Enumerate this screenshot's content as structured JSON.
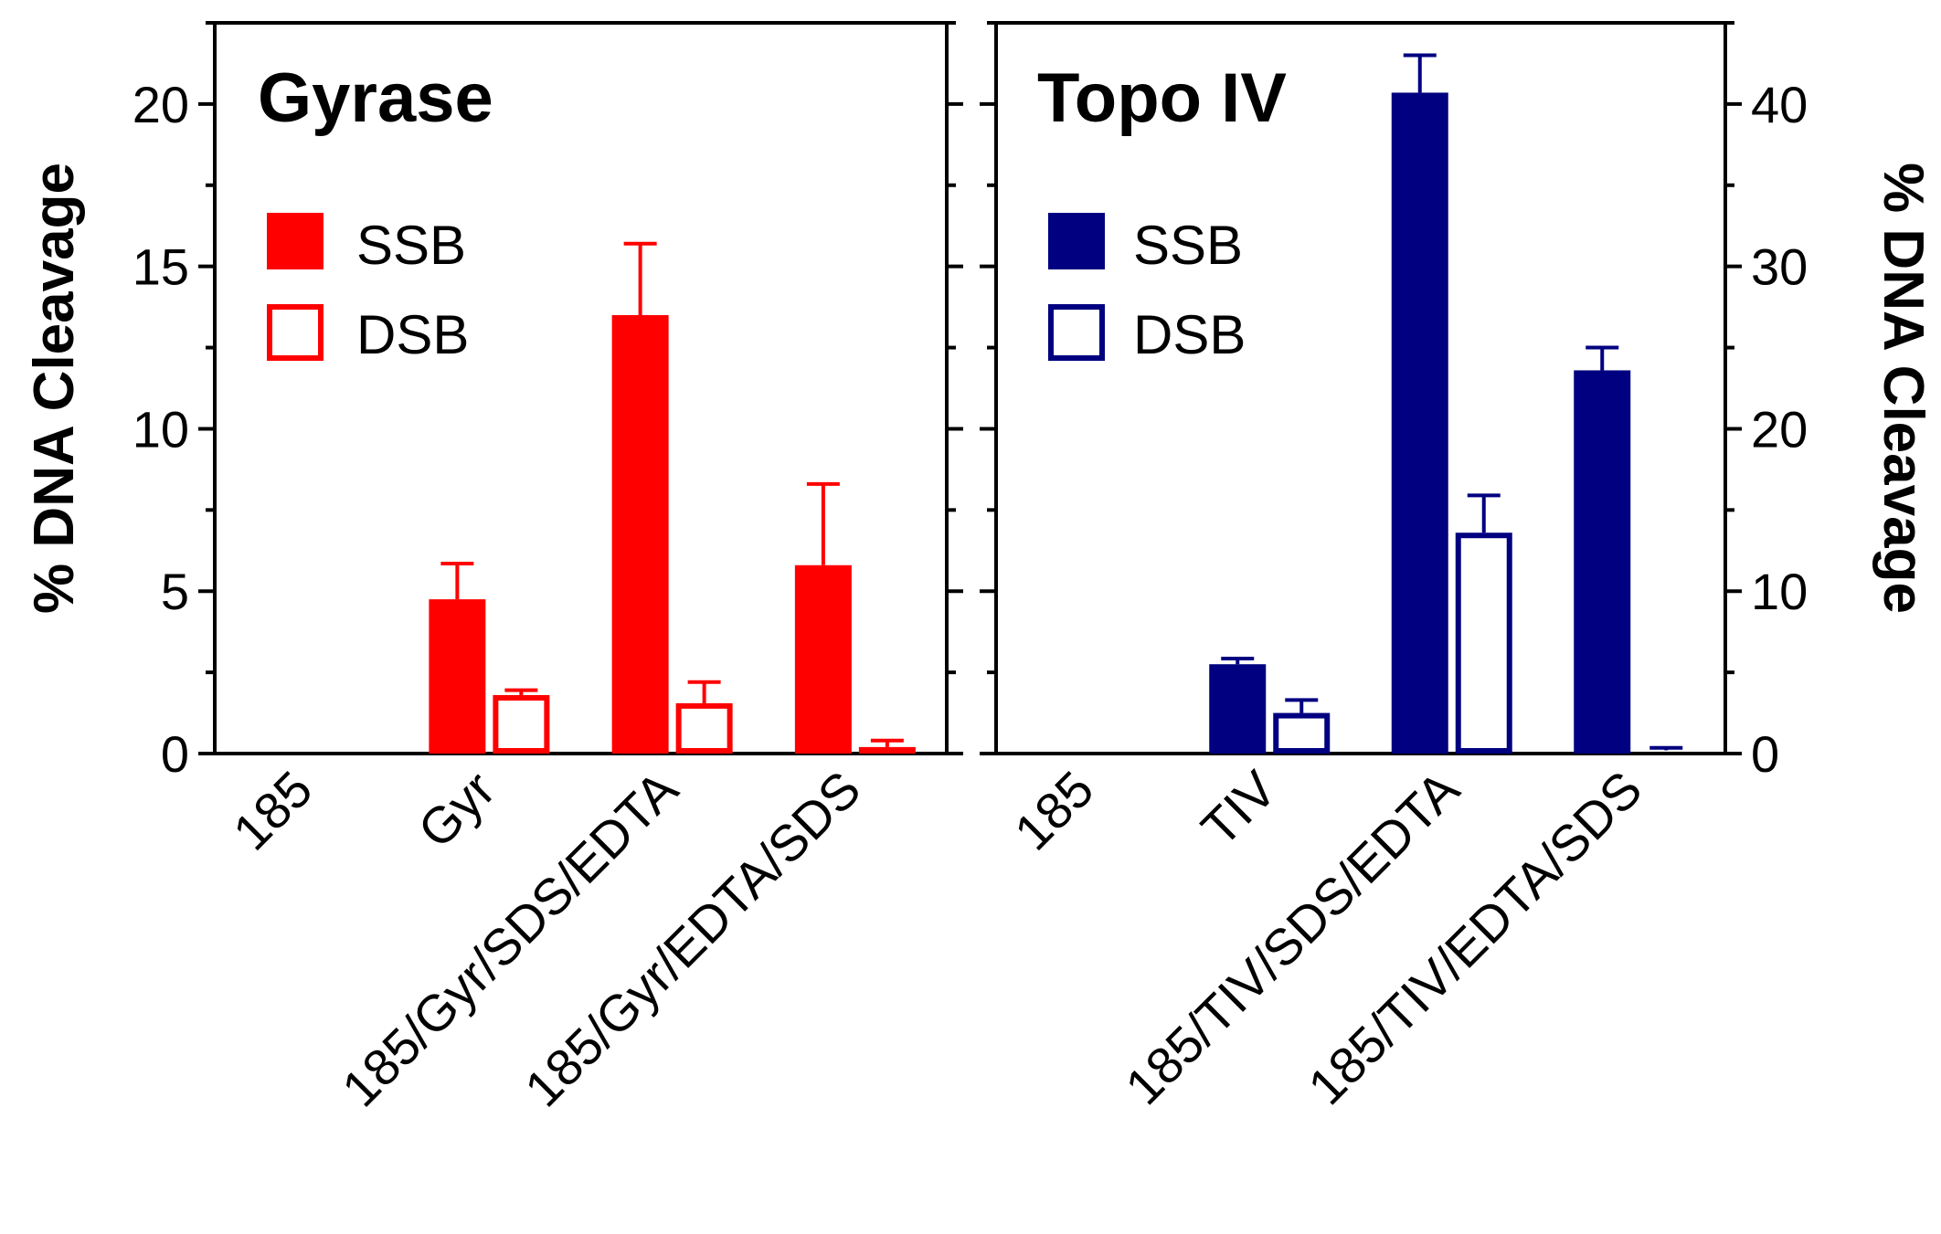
{
  "chart_data": [
    {
      "type": "bar",
      "title": "Gyrase",
      "ylabel": "% DNA Cleavage",
      "ylabel_side": "left",
      "ylim": [
        0,
        22.5
      ],
      "yticks": [
        0,
        5,
        10,
        15,
        20
      ],
      "ytick_labels": [
        "0",
        "5",
        "10",
        "15",
        "20"
      ],
      "color": "#ff0000",
      "categories": [
        "185",
        "Gyr",
        "185/Gyr/SDS/EDTA",
        "185/Gyr/EDTA/SDS"
      ],
      "series": [
        {
          "name": "SSB",
          "fill": "solid",
          "values": [
            0,
            4.75,
            13.5,
            5.8
          ],
          "errors": [
            0,
            1.1,
            2.2,
            2.5
          ]
        },
        {
          "name": "DSB",
          "fill": "open",
          "values": [
            0,
            1.8,
            1.55,
            0.2
          ],
          "errors": [
            0,
            0.15,
            0.65,
            0.2
          ]
        }
      ],
      "legend_position": "upper-left"
    },
    {
      "type": "bar",
      "title": "Topo IV",
      "ylabel": "% DNA Cleavage",
      "ylabel_side": "right",
      "ylim": [
        0,
        45
      ],
      "yticks": [
        0,
        10,
        20,
        30,
        40
      ],
      "ytick_labels": [
        "0",
        "10",
        "20",
        "30",
        "40"
      ],
      "color": "#000080",
      "categories": [
        "185",
        "TIV",
        "185/TIV/SDS/EDTA",
        "185/TIV/EDTA/SDS"
      ],
      "series": [
        {
          "name": "SSB",
          "fill": "solid",
          "values": [
            0,
            5.5,
            40.7,
            23.6
          ],
          "errors": [
            0,
            0.35,
            2.3,
            1.4
          ]
        },
        {
          "name": "DSB",
          "fill": "open",
          "values": [
            0,
            2.5,
            13.6,
            0.2
          ],
          "errors": [
            0,
            0.8,
            2.3,
            0.15
          ]
        }
      ],
      "legend_position": "upper-left"
    }
  ]
}
